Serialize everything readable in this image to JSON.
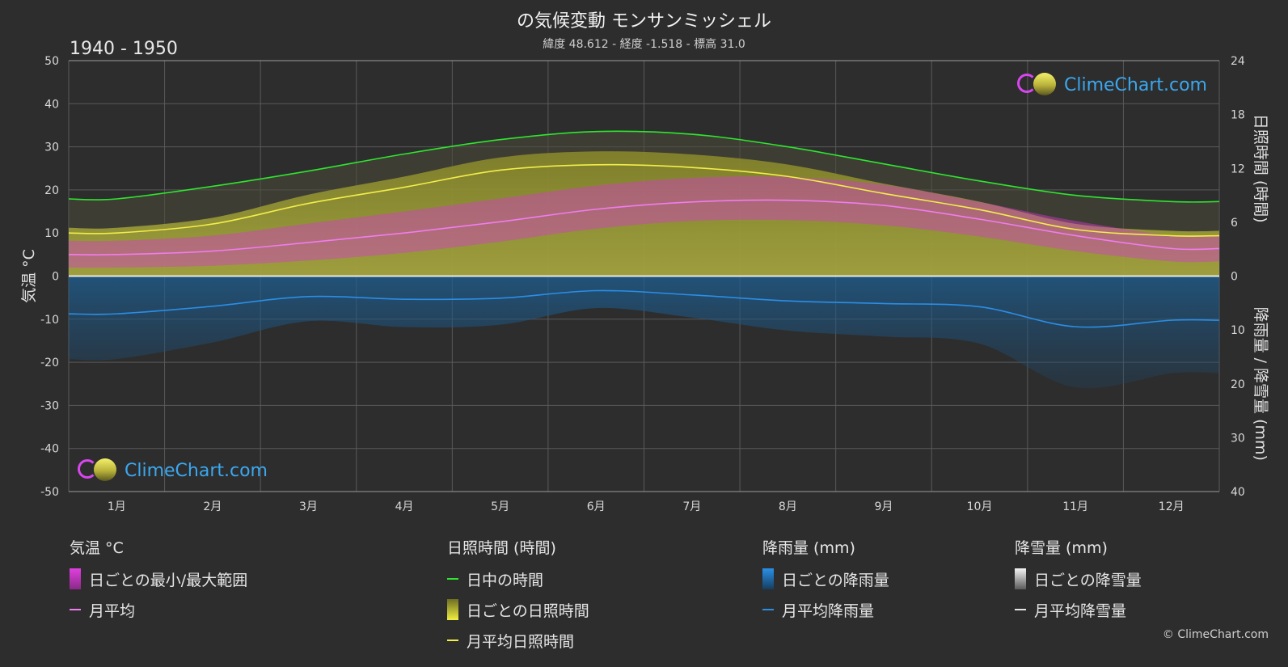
{
  "header": {
    "title": "の気候変動 モンサンミッシェル",
    "subtitle": "緯度 48.612 - 経度 -1.518 - 標高 31.0",
    "period": "1940 - 1950"
  },
  "branding": {
    "logo_text": "ClimeChart.com",
    "copyright": "© ClimeChart.com"
  },
  "legend": {
    "temperature": {
      "heading": "気温 °C",
      "items": [
        "日ごとの最小/最大範囲",
        "月平均"
      ]
    },
    "sunshine": {
      "heading": "日照時間 (時間)",
      "items": [
        "日中の時間",
        "日ごとの日照時間",
        "月平均日照時間"
      ]
    },
    "rain": {
      "heading": "降雨量 (mm)",
      "items": [
        "日ごとの降雨量",
        "月平均降雨量"
      ]
    },
    "snow": {
      "heading": "降雪量 (mm)",
      "items": [
        "日ごとの降雪量",
        "月平均降雪量"
      ]
    }
  },
  "colors": {
    "background": "#2d2d2d",
    "daylight": "#2ee62e",
    "sunshine_line": "#f2ee4a",
    "sunshine_fill": "#b4b43c",
    "temp_line": "#f07cf0",
    "temp_range": "#d23cc8",
    "rain_line": "#2a8ee6",
    "rain_fill": "#1e5a8c",
    "snow_line": "#e6e6e6",
    "grid": "#5a5a5a"
  },
  "chart_data": {
    "type": "line",
    "categories": [
      "1月",
      "2月",
      "3月",
      "4月",
      "5月",
      "6月",
      "7月",
      "8月",
      "9月",
      "10月",
      "11月",
      "12月"
    ],
    "y_left": {
      "label": "気温 °C",
      "ticks": [
        50,
        40,
        30,
        20,
        10,
        0,
        -10,
        -20,
        -30,
        -40,
        -50
      ],
      "range": [
        -50,
        50
      ]
    },
    "y_right_top": {
      "label": "日照時間 (時間)",
      "ticks": [
        24,
        18,
        12,
        6,
        0
      ],
      "range": [
        0,
        24
      ]
    },
    "y_right_bottom": {
      "label": "降雨量 / 降雪量 (mm)",
      "ticks": [
        0,
        10,
        20,
        30,
        40
      ],
      "range": [
        0,
        40
      ]
    },
    "series": [
      {
        "name": "日中の時間",
        "axis": "sunshine_hours",
        "values": [
          8.6,
          10.0,
          11.7,
          13.6,
          15.2,
          16.1,
          15.8,
          14.4,
          12.5,
          10.6,
          9.0,
          8.3
        ]
      },
      {
        "name": "月平均日照時間",
        "axis": "sunshine_hours",
        "values": [
          4.8,
          5.8,
          8.1,
          9.9,
          11.8,
          12.4,
          12.1,
          11.1,
          9.2,
          7.4,
          5.2,
          4.5
        ]
      },
      {
        "name": "月平均",
        "axis": "temperature_c",
        "values": [
          5.0,
          5.8,
          7.8,
          10.0,
          12.6,
          15.5,
          17.2,
          17.6,
          16.4,
          13.2,
          9.4,
          6.4
        ]
      },
      {
        "name": "月平均降雨量",
        "axis": "precip_mm",
        "values": [
          7.0,
          5.6,
          3.8,
          4.3,
          4.1,
          2.7,
          3.5,
          4.6,
          5.1,
          5.7,
          9.4,
          8.2
        ]
      },
      {
        "name": "月平均降雪量",
        "axis": "precip_mm",
        "values": [
          0,
          0,
          0,
          0,
          0,
          0,
          0,
          0,
          0,
          0,
          0,
          0
        ]
      }
    ],
    "daily_range": {
      "name": "日ごとの最小/最大範囲",
      "min": [
        2.0,
        2.4,
        3.6,
        5.4,
        8.0,
        11.0,
        12.8,
        13.0,
        11.8,
        9.2,
        5.8,
        3.4
      ],
      "max": [
        8.2,
        9.4,
        12.2,
        15.0,
        18.0,
        21.0,
        22.8,
        23.0,
        21.2,
        17.2,
        12.8,
        9.4
      ]
    },
    "grid": true
  }
}
